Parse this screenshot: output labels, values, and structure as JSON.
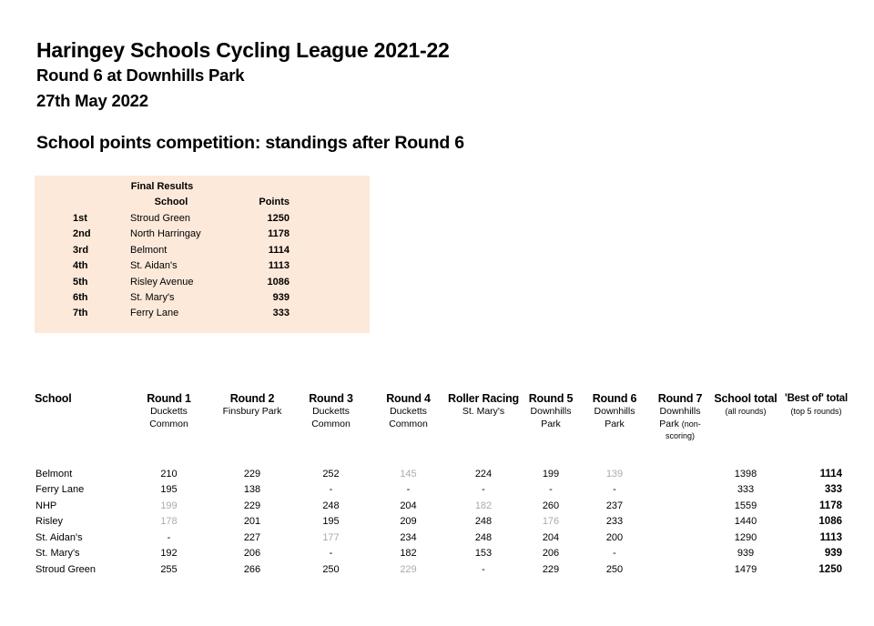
{
  "header": {
    "title": "Haringey Schools Cycling League 2021-22",
    "subtitle": "Round 6 at Downhills Park",
    "date": "27th May 2022",
    "section_title": "School points competition: standings after Round 6"
  },
  "colors": {
    "summary_background": "#fde9d9",
    "dropped_score_gray": "#ababab",
    "text": "#000000"
  },
  "final_results": {
    "title": "Final Results",
    "columns": {
      "school": "School",
      "points": "Points"
    },
    "rows": [
      {
        "position": "1st",
        "school": "Stroud Green",
        "points": "1250"
      },
      {
        "position": "2nd",
        "school": "North Harringay",
        "points": "1178"
      },
      {
        "position": "3rd",
        "school": "Belmont",
        "points": "1114"
      },
      {
        "position": "4th",
        "school": "St. Aidan's",
        "points": "1113"
      },
      {
        "position": "5th",
        "school": "Risley Avenue",
        "points": "1086"
      },
      {
        "position": "6th",
        "school": "St. Mary's",
        "points": "939"
      },
      {
        "position": "7th",
        "school": "Ferry Lane",
        "points": "333"
      }
    ]
  },
  "standings": {
    "columns": [
      {
        "label": "School"
      },
      {
        "label": "Round 1",
        "sub": [
          "Ducketts",
          "Common"
        ]
      },
      {
        "label": "Round 2",
        "sub": [
          "Finsbury Park"
        ]
      },
      {
        "label": "Round 3",
        "sub": [
          "Ducketts",
          "Common"
        ]
      },
      {
        "label": "Round 4",
        "sub": [
          "Ducketts",
          "Common"
        ]
      },
      {
        "label": "Roller Racing",
        "sub": [
          "St. Mary's"
        ]
      },
      {
        "label": "Round 5",
        "sub": [
          "Downhills",
          "Park"
        ]
      },
      {
        "label": "Round 6",
        "sub": [
          "Downhills",
          "Park"
        ]
      },
      {
        "label": "Round 7",
        "sub": [
          "Downhills",
          "Park"
        ],
        "note": "(non-scoring)",
        "note_inline": true
      },
      {
        "label": "School total",
        "note": "(all rounds)"
      },
      {
        "label": "'Best of' total",
        "note": "(top 5 rounds)",
        "small_label": true
      }
    ],
    "rows": [
      {
        "school": "Belmont",
        "scores": [
          {
            "v": "210"
          },
          {
            "v": "229"
          },
          {
            "v": "252"
          },
          {
            "v": "145",
            "dim": true
          },
          {
            "v": "224"
          },
          {
            "v": "199"
          },
          {
            "v": "139",
            "dim": true
          },
          {
            "v": ""
          },
          {
            "v": "1398"
          },
          {
            "v": "1114"
          }
        ]
      },
      {
        "school": "Ferry Lane",
        "scores": [
          {
            "v": "195"
          },
          {
            "v": "138"
          },
          {
            "v": "-"
          },
          {
            "v": "-"
          },
          {
            "v": "-"
          },
          {
            "v": "-"
          },
          {
            "v": "-"
          },
          {
            "v": ""
          },
          {
            "v": "333"
          },
          {
            "v": "333"
          }
        ]
      },
      {
        "school": "NHP",
        "scores": [
          {
            "v": "199",
            "dim": true
          },
          {
            "v": "229"
          },
          {
            "v": "248"
          },
          {
            "v": "204"
          },
          {
            "v": "182",
            "dim": true
          },
          {
            "v": "260"
          },
          {
            "v": "237"
          },
          {
            "v": ""
          },
          {
            "v": "1559"
          },
          {
            "v": "1178"
          }
        ]
      },
      {
        "school": "Risley",
        "scores": [
          {
            "v": "178",
            "dim": true
          },
          {
            "v": "201"
          },
          {
            "v": "195"
          },
          {
            "v": "209"
          },
          {
            "v": "248"
          },
          {
            "v": "176",
            "dim": true
          },
          {
            "v": "233"
          },
          {
            "v": ""
          },
          {
            "v": "1440"
          },
          {
            "v": "1086"
          }
        ]
      },
      {
        "school": "St. Aidan's",
        "scores": [
          {
            "v": "-"
          },
          {
            "v": "227"
          },
          {
            "v": "177",
            "dim": true
          },
          {
            "v": "234"
          },
          {
            "v": "248"
          },
          {
            "v": "204"
          },
          {
            "v": "200"
          },
          {
            "v": ""
          },
          {
            "v": "1290"
          },
          {
            "v": "1113"
          }
        ]
      },
      {
        "school": "St. Mary's",
        "scores": [
          {
            "v": "192"
          },
          {
            "v": "206"
          },
          {
            "v": "-"
          },
          {
            "v": "182"
          },
          {
            "v": "153"
          },
          {
            "v": "206"
          },
          {
            "v": "-"
          },
          {
            "v": ""
          },
          {
            "v": "939"
          },
          {
            "v": "939"
          }
        ]
      },
      {
        "school": "Stroud Green",
        "scores": [
          {
            "v": "255"
          },
          {
            "v": "266"
          },
          {
            "v": "250"
          },
          {
            "v": "229",
            "dim": true
          },
          {
            "v": "-"
          },
          {
            "v": "229"
          },
          {
            "v": "250"
          },
          {
            "v": ""
          },
          {
            "v": "1479"
          },
          {
            "v": "1250"
          }
        ]
      }
    ]
  }
}
